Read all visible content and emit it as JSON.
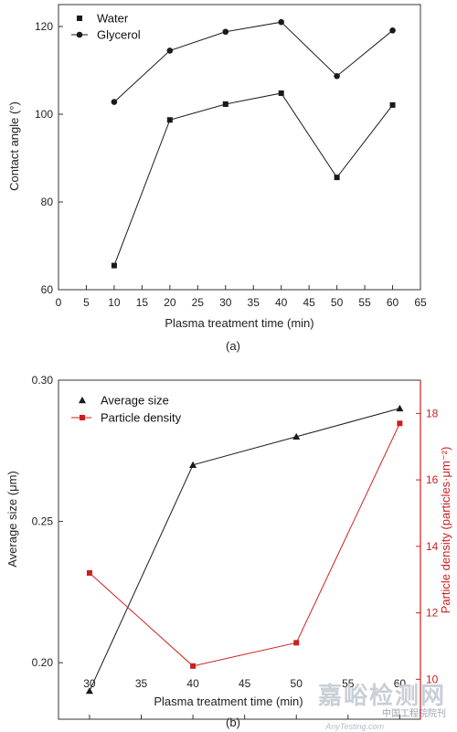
{
  "chart_data": [
    {
      "type": "line",
      "panel_label": "(a)",
      "xlabel": "Plasma treatment time (min)",
      "ylabel": "Contact angle (°)",
      "xlim": [
        0,
        65
      ],
      "ylim": [
        60,
        125
      ],
      "xticks": [
        0,
        5,
        10,
        15,
        20,
        25,
        30,
        35,
        40,
        45,
        50,
        55,
        60,
        65
      ],
      "yticks": [
        60,
        80,
        100,
        120
      ],
      "legend_position": "top-left",
      "grid": false,
      "x": [
        10,
        20,
        30,
        40,
        50,
        60
      ],
      "series": [
        {
          "name": "Water",
          "marker": "square",
          "color": "#1a1a1a",
          "values": [
            65.5,
            98.7,
            102.3,
            104.8,
            85.6,
            102.1
          ]
        },
        {
          "name": "Glycerol",
          "marker": "circle",
          "color": "#1a1a1a",
          "values": [
            102.8,
            114.5,
            118.8,
            121.0,
            108.7,
            119.1
          ]
        }
      ]
    },
    {
      "type": "line",
      "panel_label": "(b)",
      "xlabel": "Plasma treatment time (min)",
      "ylabel_left": "Average size (μm)",
      "ylabel_right": "Particle density (particles·μm⁻²)",
      "xlim": [
        27,
        62
      ],
      "ylim_left": [
        0.18,
        0.3
      ],
      "ylim_right": [
        8.8,
        19.0
      ],
      "xticks": [
        30,
        35,
        40,
        45,
        50,
        55,
        60
      ],
      "yticks_left": [
        0.2,
        0.25,
        0.3
      ],
      "yticks_right": [
        10,
        12,
        14,
        16,
        18
      ],
      "legend_position": "top-left",
      "grid": false,
      "x": [
        30,
        40,
        50,
        60
      ],
      "series": [
        {
          "name": "Average size",
          "axis": "left",
          "marker": "triangle",
          "color": "#1a1a1a",
          "values": [
            0.19,
            0.27,
            0.28,
            0.29
          ]
        },
        {
          "name": "Particle density",
          "axis": "right",
          "marker": "square",
          "color": "#cc1f1f",
          "values": [
            13.2,
            10.4,
            11.1,
            17.7
          ]
        }
      ],
      "right_axis_color": "#cc1f1f"
    }
  ],
  "watermark": {
    "main": "嘉峪检测网",
    "sub": "中国工程院院刊",
    "en": "AnyTesting.com"
  }
}
